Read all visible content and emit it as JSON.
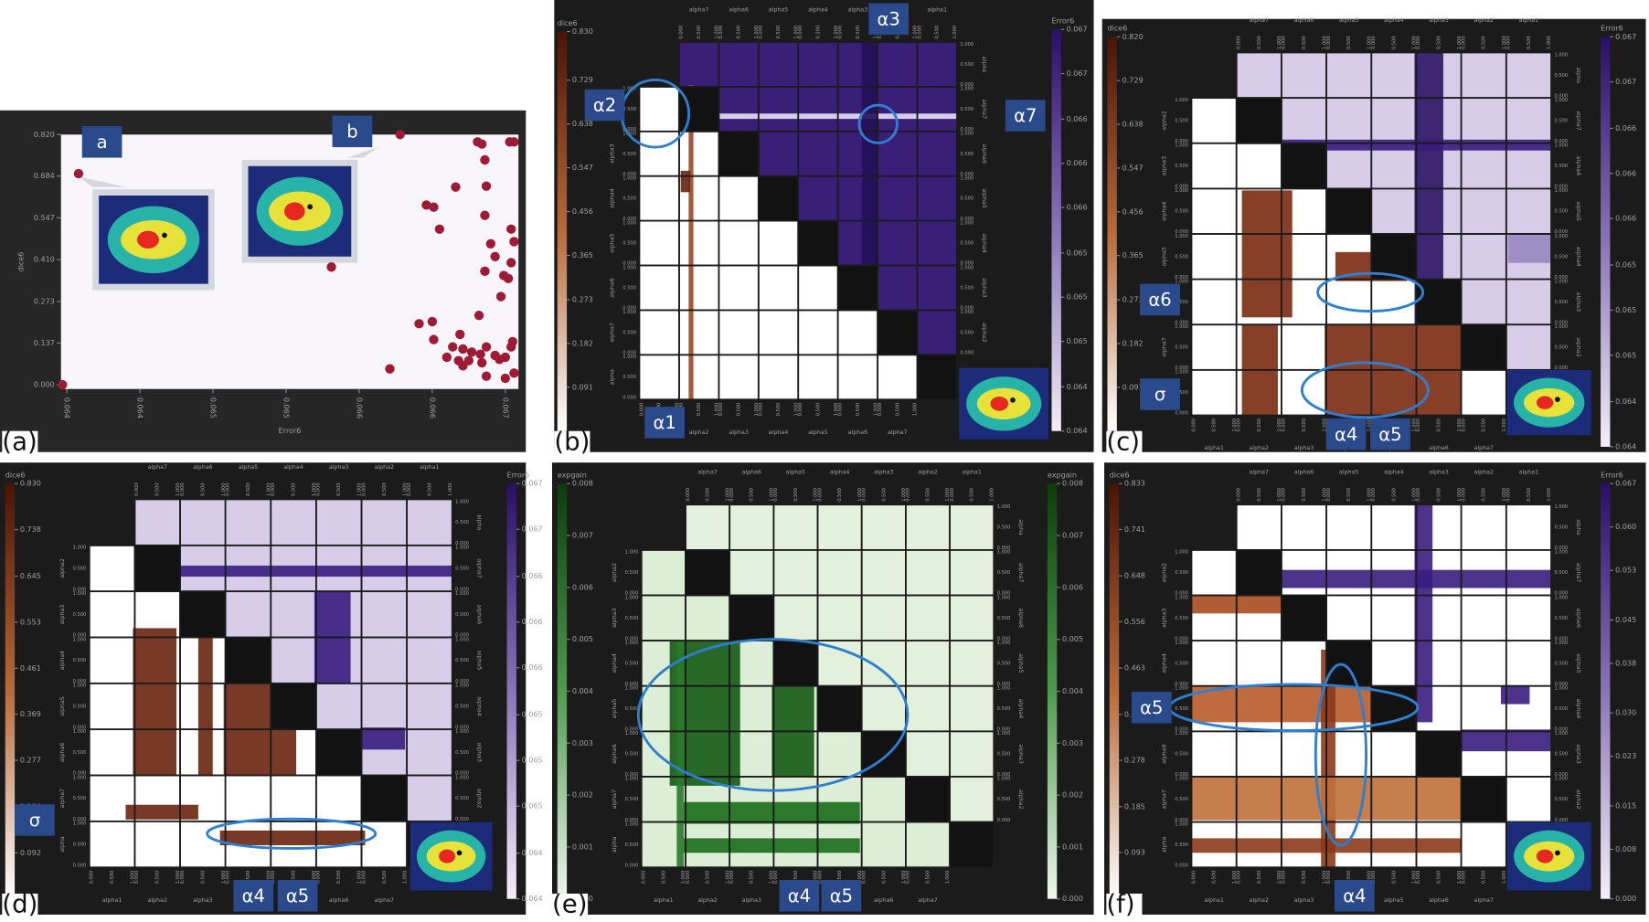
{
  "chart_data": [
    {
      "type": "scatter",
      "label": "(a)",
      "xlabel": "Error6",
      "ylabel": "dice6",
      "color": "#9e1a35",
      "x": [
        0.06408,
        0.06628,
        0.06581,
        0.06621,
        0.06397,
        0.06646,
        0.06651,
        0.06655,
        0.06666,
        0.06681,
        0.06684,
        0.06686,
        0.06703,
        0.06706,
        0.06687,
        0.06686,
        0.0669,
        0.06693,
        0.06699,
        0.06704,
        0.06706,
        0.06704,
        0.06702,
        0.06686,
        0.06697,
        0.06682,
        0.06641,
        0.0665,
        0.06651,
        0.06669,
        0.06664,
        0.06671,
        0.0666,
        0.06668,
        0.06675,
        0.06677,
        0.06683,
        0.06687,
        0.06693,
        0.06696,
        0.067,
        0.06704,
        0.06705,
        0.06706,
        0.067,
        0.06687,
        0.06671,
        0.06684
      ],
      "y": [
        0.692,
        0.82,
        0.386,
        0.052,
        0,
        0.589,
        0.582,
        0.51,
        0.648,
        0.796,
        0.789,
        0.737,
        0.796,
        0.796,
        0.651,
        0.555,
        0.462,
        0.42,
        0.358,
        0.51,
        0.469,
        0.4,
        0.348,
        0.372,
        0.289,
        0.227,
        0.2,
        0.207,
        0.148,
        0.165,
        0.124,
        0.117,
        0.09,
        0.079,
        0.079,
        0.107,
        0.1,
        0.124,
        0.096,
        0.083,
        0.09,
        0.124,
        0.141,
        0.038,
        0.021,
        0.028,
        0.062,
        0.072
      ],
      "xlim": [
        0.06396,
        0.06709
      ],
      "ylim": [
        -0.014,
        0.82
      ],
      "xticks": [
        {
          "value": 0.064,
          "label": "0.064"
        },
        {
          "value": 0.0645,
          "label": "0.064"
        },
        {
          "value": 0.065,
          "label": "0.065"
        },
        {
          "value": 0.0655,
          "label": "0.065"
        },
        {
          "value": 0.066,
          "label": "0.066"
        },
        {
          "value": 0.0665,
          "label": "0.066"
        },
        {
          "value": 0.067,
          "label": "0.067"
        }
      ],
      "yticks": [
        {
          "value": 0.82,
          "label": "0.820"
        },
        0.684,
        0.547,
        {
          "value": 0.41,
          "label": "0.410"
        },
        0.273,
        0.137,
        {
          "value": 0,
          "label": "0.000"
        }
      ],
      "annotations": [
        "a",
        "b"
      ]
    },
    {
      "type": "matrix",
      "label": "(b)",
      "ylabel": "dice6",
      "ylim": [
        0,
        0.83
      ],
      "yticks": [
        {
          "value": 0.83,
          "label": "0.830"
        },
        0.729,
        0.638,
        0.547,
        0.456,
        0.365,
        0.273,
        0.182,
        0.091
      ],
      "y2label": "Error6",
      "y2lim": [
        0.064,
        0.067
      ],
      "y2ticks": [
        {
          "value": 0.067,
          "label": "0.067"
        },
        {
          "value": 0.06667,
          "label": "0.067"
        },
        {
          "value": 0.06633,
          "label": "0.066"
        },
        {
          "value": 0.066,
          "label": "0.066"
        },
        {
          "value": 0.06567,
          "label": "0.066"
        },
        {
          "value": 0.06533,
          "label": "0.065"
        },
        {
          "value": 0.065,
          "label": "0.065"
        },
        {
          "value": 0.06467,
          "label": "0.065"
        },
        {
          "value": 0.06433,
          "label": "0.064"
        },
        {
          "value": 0.064,
          "label": "0.064"
        }
      ],
      "xlim": [
        0,
        1
      ],
      "xticks": [
        {
          "value": 0,
          "label": "0.000"
        },
        {
          "value": 0.5,
          "label": "0.500"
        },
        {
          "value": 1,
          "label": "1.000"
        }
      ],
      "top_vars": [
        "alpha7",
        "alpha6",
        "alpha5",
        "alpha4",
        "alpha3",
        "alpha2",
        "alpha1"
      ],
      "bottom_vars": [
        "alpha1",
        "alpha2",
        "alpha3",
        "alpha4",
        "alpha5",
        "alpha6",
        "alpha7"
      ],
      "left_vars": [
        "alpha2",
        "alpha3",
        "alpha4",
        "alpha5",
        "alpha6",
        "alpha7",
        "alpha"
      ],
      "right_vars": [
        "alpha",
        "alpha7",
        "alpha6",
        "alpha5",
        "alpha4",
        "alpha3",
        "alpha2"
      ],
      "annotations": [
        "α3",
        "α2",
        "α7",
        "α1"
      ]
    },
    {
      "type": "matrix",
      "label": "(c)",
      "ylabel": "dice6",
      "ylim": [
        0,
        0.82
      ],
      "yticks": [
        {
          "value": 0.82,
          "label": "0.820"
        },
        0.729,
        0.638,
        0.547,
        0.456,
        0.365,
        0.273,
        0.182,
        0.091
      ],
      "y2label": "Error6",
      "y2lim": [
        0.064,
        0.067
      ],
      "y2ticks": [
        {
          "value": 0.067,
          "label": "0.067"
        },
        {
          "value": 0.06667,
          "label": "0.067"
        },
        {
          "value": 0.06633,
          "label": "0.066"
        },
        {
          "value": 0.066,
          "label": "0.066"
        },
        {
          "value": 0.06567,
          "label": "0.066"
        },
        {
          "value": 0.06533,
          "label": "0.065"
        },
        {
          "value": 0.065,
          "label": "0.065"
        },
        {
          "value": 0.06467,
          "label": "0.065"
        },
        {
          "value": 0.06433,
          "label": "0.064"
        },
        {
          "value": 0.064,
          "label": "0.064"
        }
      ],
      "xlim": [
        0,
        1
      ],
      "xticks": [
        {
          "value": 0,
          "label": "0.000"
        },
        {
          "value": 0.5,
          "label": "0.500"
        },
        {
          "value": 1,
          "label": "1.000"
        }
      ],
      "top_vars": [
        "alpha7",
        "alpha6",
        "alpha5",
        "alpha4",
        "alpha3",
        "alpha2",
        "alpha1"
      ],
      "bottom_vars": [
        "alpha1",
        "alpha2",
        "alpha3",
        "alpha4",
        "alpha5",
        "alpha6",
        "alpha7"
      ],
      "left_vars": [
        "alpha2",
        "alpha3",
        "alpha4",
        "alpha5",
        "alpha6",
        "alpha7",
        "alpha"
      ],
      "right_vars": [
        "alpha",
        "alpha7",
        "alpha6",
        "alpha5",
        "alpha4",
        "alpha3",
        "alpha2"
      ],
      "annotations": [
        "α6",
        "σ",
        "α4",
        "α5"
      ]
    },
    {
      "type": "matrix",
      "label": "(d)",
      "ylabel": "dice6",
      "ylim": [
        0,
        0.83
      ],
      "yticks": [
        {
          "value": 0.83,
          "label": "0.830"
        },
        0.738,
        0.645,
        0.553,
        0.461,
        0.369,
        0.277,
        0.184,
        0.092
      ],
      "y2label": "Error6",
      "y2lim": [
        0.064,
        0.067
      ],
      "y2ticks": [
        {
          "value": 0.067,
          "label": "0.067"
        },
        {
          "value": 0.06667,
          "label": "0.067"
        },
        {
          "value": 0.06633,
          "label": "0.066"
        },
        {
          "value": 0.066,
          "label": "0.066"
        },
        {
          "value": 0.06567,
          "label": "0.066"
        },
        {
          "value": 0.06533,
          "label": "0.065"
        },
        {
          "value": 0.065,
          "label": "0.065"
        },
        {
          "value": 0.06467,
          "label": "0.065"
        },
        {
          "value": 0.06433,
          "label": "0.064"
        },
        {
          "value": 0.064,
          "label": "0.064"
        }
      ],
      "xlim": [
        0,
        1
      ],
      "xticks": [
        {
          "value": 0,
          "label": "0.000"
        },
        {
          "value": 0.5,
          "label": "0.500"
        },
        {
          "value": 1,
          "label": "1.000"
        }
      ],
      "top_vars": [
        "alpha7",
        "alpha6",
        "alpha5",
        "alpha4",
        "alpha3",
        "alpha2",
        "alpha1"
      ],
      "bottom_vars": [
        "alpha1",
        "alpha2",
        "alpha3",
        "alpha4",
        "alpha5",
        "alpha6",
        "alpha7"
      ],
      "left_vars": [
        "alpha2",
        "alpha3",
        "alpha4",
        "alpha5",
        "alpha6",
        "alpha7",
        "alpha"
      ],
      "right_vars": [
        "alpha",
        "alpha7",
        "alpha6",
        "alpha5",
        "alpha4",
        "alpha3",
        "alpha2"
      ],
      "annotations": [
        "σ",
        "α4",
        "α5"
      ]
    },
    {
      "type": "matrix",
      "label": "(e)",
      "ylabel": "expgain",
      "ylim": [
        0,
        0.008
      ],
      "yticks": [
        0.008,
        0.007,
        0.006,
        0.005,
        0.004,
        0.003,
        0.002,
        0.001,
        {
          "value": 0,
          "label": "0.000"
        }
      ],
      "y2label": "expgain",
      "y2lim": [
        0,
        0.008
      ],
      "y2ticks": [
        0.008,
        0.007,
        0.006,
        0.005,
        0.004,
        0.003,
        0.002,
        0.001,
        {
          "value": 0,
          "label": "0.000"
        }
      ],
      "xlim": [
        0,
        1
      ],
      "xticks": [
        {
          "value": 0,
          "label": "0.000"
        },
        {
          "value": 0.5,
          "label": "0.500"
        },
        {
          "value": 1,
          "label": "1.000"
        }
      ],
      "top_vars": [
        "alpha7",
        "alpha6",
        "alpha5",
        "alpha4",
        "alpha3",
        "alpha2",
        "alpha1"
      ],
      "bottom_vars": [
        "alpha1",
        "alpha2",
        "alpha3",
        "alpha4",
        "alpha5",
        "alpha6",
        "alpha7"
      ],
      "left_vars": [
        "alpha2",
        "alpha3",
        "alpha4",
        "alpha5",
        "alpha6",
        "alpha7",
        "alpha"
      ],
      "right_vars": [
        "alpha",
        "alpha7",
        "alpha6",
        "alpha5",
        "alpha4",
        "alpha3",
        "alpha2"
      ],
      "annotations": [
        "α4",
        "α5"
      ]
    },
    {
      "type": "matrix",
      "label": "(f)",
      "ylabel": "dice6",
      "ylim": [
        0,
        0.833
      ],
      "yticks": [
        0.833,
        0.741,
        0.648,
        0.556,
        0.463,
        {
          "value": 0.37,
          "label": "0.370"
        },
        0.278,
        0.185,
        0.093
      ],
      "y2label": "Error6",
      "y2lim": [
        0,
        0.067
      ],
      "y2ticks": [
        0.067,
        {
          "value": 0.06,
          "label": "0.060"
        },
        0.053,
        0.045,
        0.038,
        {
          "value": 0.03,
          "label": "0.030"
        },
        0.023,
        0.015,
        0.008,
        {
          "value": 0,
          "label": "0.000"
        }
      ],
      "xlim": [
        0,
        1
      ],
      "xticks": [
        {
          "value": 0,
          "label": "0.000"
        },
        {
          "value": 0.5,
          "label": "0.500"
        },
        {
          "value": 1,
          "label": "1.000"
        }
      ],
      "top_vars": [
        "alpha7",
        "alpha6",
        "alpha5",
        "alpha4",
        "alpha3",
        "alpha2",
        "alpha1"
      ],
      "bottom_vars": [
        "alpha1",
        "alpha2",
        "alpha3",
        "alpha4",
        "alpha5",
        "alpha6",
        "alpha7"
      ],
      "left_vars": [
        "alpha2",
        "alpha3",
        "alpha4",
        "alpha5",
        "alpha6",
        "alpha7",
        "alpha"
      ],
      "right_vars": [
        "alpha",
        "alpha7",
        "alpha6",
        "alpha5",
        "alpha4",
        "alpha3",
        "alpha2"
      ],
      "annotations": [
        "α5",
        "α4"
      ]
    }
  ]
}
